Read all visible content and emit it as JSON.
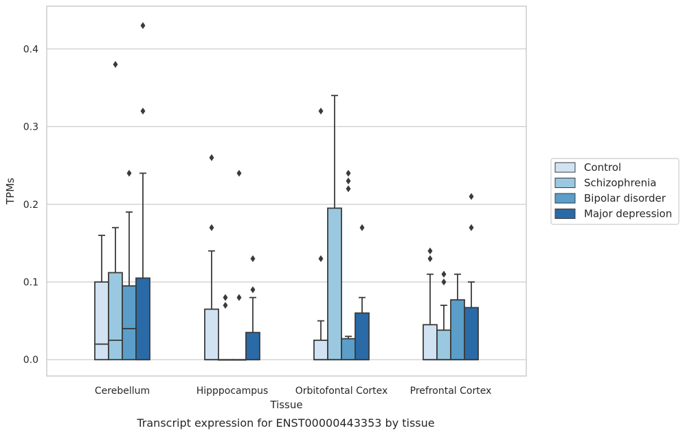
{
  "chart_data": {
    "type": "boxplot",
    "xlabel": "Tissue",
    "ylabel": "TPMs",
    "caption": "Transcript expression for ENST00000443353 by tissue",
    "ylim": [
      -0.021,
      0.455
    ],
    "yticks": [
      0.0,
      0.1,
      0.2,
      0.3,
      0.4
    ],
    "ytick_labels": [
      "0.0",
      "0.1",
      "0.2",
      "0.3",
      "0.4"
    ],
    "grid": "horizontal",
    "legend_position": "right",
    "categories": [
      "Cerebellum",
      "Hipppocampus",
      "Orbitofontal Cortex",
      "Prefrontal Cortex"
    ],
    "series": [
      {
        "name": "Control",
        "color": "#d1e2f2",
        "boxes": [
          {
            "min": 0.0,
            "q1": 0.0,
            "median": 0.02,
            "q3": 0.1,
            "max": 0.16,
            "fliers": []
          },
          {
            "min": 0.0,
            "q1": 0.0,
            "median": 0.0,
            "q3": 0.065,
            "max": 0.14,
            "fliers": [
              0.17,
              0.26
            ]
          },
          {
            "min": 0.0,
            "q1": 0.0,
            "median": 0.0,
            "q3": 0.025,
            "max": 0.05,
            "fliers": [
              0.13,
              0.32
            ]
          },
          {
            "min": 0.0,
            "q1": 0.0,
            "median": 0.0,
            "q3": 0.045,
            "max": 0.11,
            "fliers": [
              0.13,
              0.14
            ]
          }
        ]
      },
      {
        "name": "Schizophrenia",
        "color": "#9ac8e0",
        "boxes": [
          {
            "min": 0.0,
            "q1": 0.0,
            "median": 0.025,
            "q3": 0.112,
            "max": 0.17,
            "fliers": [
              0.38
            ]
          },
          {
            "min": 0.0,
            "q1": 0.0,
            "median": 0.0,
            "q3": 0.0,
            "max": 0.0,
            "fliers": [
              0.07,
              0.08
            ]
          },
          {
            "min": 0.0,
            "q1": 0.0,
            "median": 0.0,
            "q3": 0.195,
            "max": 0.34,
            "fliers": []
          },
          {
            "min": 0.0,
            "q1": 0.0,
            "median": 0.0,
            "q3": 0.038,
            "max": 0.07,
            "fliers": [
              0.1,
              0.11
            ]
          }
        ]
      },
      {
        "name": "Bipolar disorder",
        "color": "#5a9ec9",
        "boxes": [
          {
            "min": 0.0,
            "q1": 0.0,
            "median": 0.04,
            "q3": 0.095,
            "max": 0.19,
            "fliers": [
              0.24
            ]
          },
          {
            "min": 0.0,
            "q1": 0.0,
            "median": 0.0,
            "q3": 0.0,
            "max": 0.0,
            "fliers": [
              0.08,
              0.24
            ]
          },
          {
            "min": 0.0,
            "q1": 0.0,
            "median": 0.0,
            "q3": 0.027,
            "max": 0.03,
            "fliers": [
              0.22,
              0.23,
              0.24
            ]
          },
          {
            "min": 0.0,
            "q1": 0.0,
            "median": 0.0,
            "q3": 0.077,
            "max": 0.11,
            "fliers": []
          }
        ]
      },
      {
        "name": "Major depression",
        "color": "#2a6aa7",
        "boxes": [
          {
            "min": 0.0,
            "q1": 0.0,
            "median": 0.0,
            "q3": 0.105,
            "max": 0.24,
            "fliers": [
              0.32,
              0.43
            ]
          },
          {
            "min": 0.0,
            "q1": 0.0,
            "median": 0.0,
            "q3": 0.035,
            "max": 0.08,
            "fliers": [
              0.09,
              0.13
            ]
          },
          {
            "min": 0.0,
            "q1": 0.0,
            "median": 0.0,
            "q3": 0.06,
            "max": 0.08,
            "fliers": [
              0.17
            ]
          },
          {
            "min": 0.0,
            "q1": 0.0,
            "median": 0.0,
            "q3": 0.067,
            "max": 0.1,
            "fliers": [
              0.17,
              0.21
            ]
          }
        ]
      }
    ]
  }
}
